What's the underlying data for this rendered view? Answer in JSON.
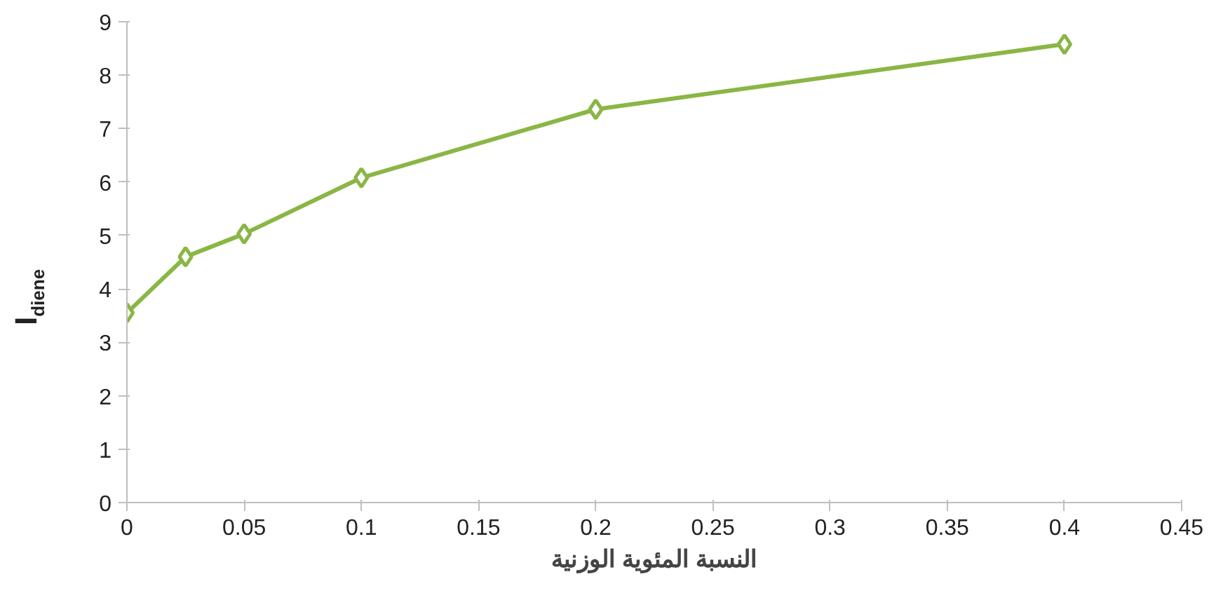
{
  "chart_data": {
    "type": "line",
    "xlabel": "النسبة المئوية الوزنية",
    "ylabel": "I$_{diene}$",
    "x": [
      0,
      0.025,
      0.05,
      0.1,
      0.2,
      0.4
    ],
    "series": [
      {
        "color": "#8ab645",
        "values": [
          3.55,
          4.6,
          5.03,
          6.08,
          7.36,
          8.58
        ]
      }
    ],
    "marker": "diamond",
    "grid": false,
    "xlim": [
      0,
      0.45
    ],
    "xticks": [
      0,
      0.05,
      0.1,
      0.15,
      0.2,
      0.25,
      0.3,
      0.35,
      0.4,
      0.45
    ],
    "ylim": [
      0,
      9
    ],
    "yticks": [
      0,
      1,
      2,
      3,
      4,
      5,
      6,
      7,
      8,
      9
    ]
  }
}
